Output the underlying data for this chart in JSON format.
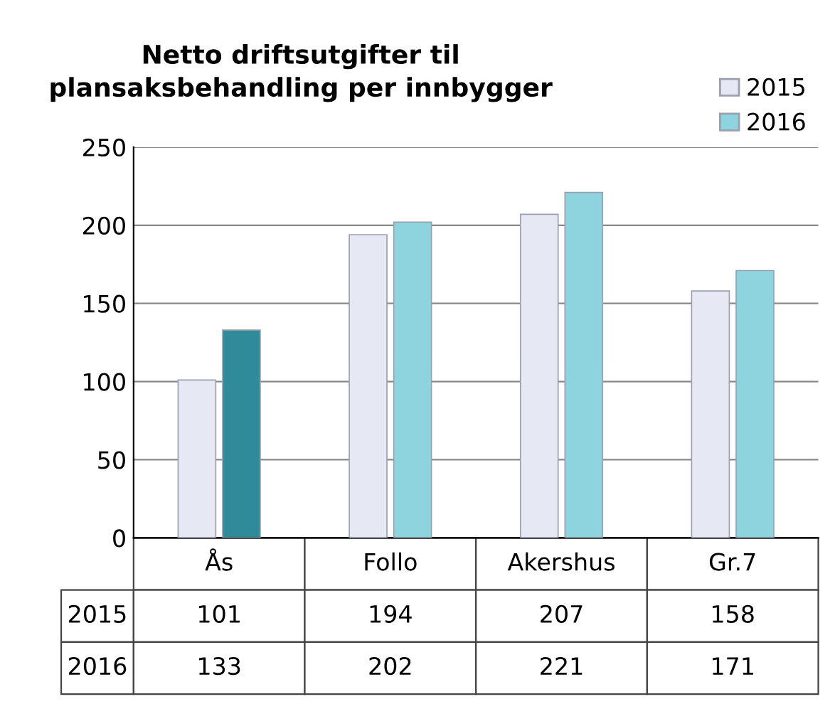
{
  "chart_data": {
    "type": "bar",
    "title": "Netto driftsutgifter til\nplansaksbehandling per innbygger",
    "categories": [
      "Ås",
      "Follo",
      "Akershus",
      "Gr.7"
    ],
    "series": [
      {
        "name": "2015",
        "color": "#e6e8f4",
        "values": [
          101,
          194,
          207,
          158
        ]
      },
      {
        "name": "2016",
        "color": "#8ed4df",
        "colors": [
          "#2f8a9a",
          "#8ed4df",
          "#8ed4df",
          "#8ed4df"
        ],
        "values": [
          133,
          202,
          221,
          171
        ]
      }
    ],
    "ylim": [
      0,
      250
    ],
    "yticks": [
      0,
      50,
      100,
      150,
      200,
      250
    ],
    "grid": "y",
    "legend": "top right",
    "data_labels": true
  }
}
